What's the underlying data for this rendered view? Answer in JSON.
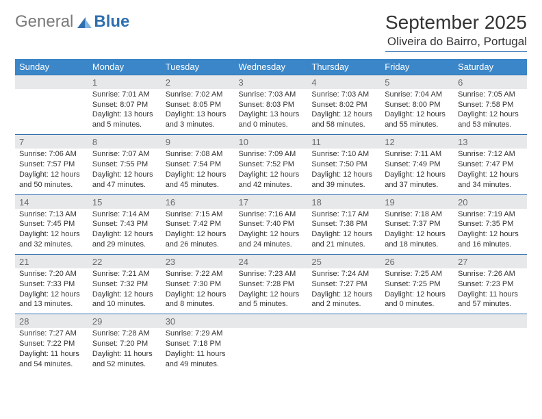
{
  "brand": {
    "general": "General",
    "blue": "Blue"
  },
  "title": "September 2025",
  "location": "Oliveira do Bairro, Portugal",
  "colors": {
    "header_bg": "#3b86c8",
    "header_text": "#ffffff",
    "daynum_bg": "#e7e8ea",
    "rule": "#2f6faf",
    "body_text": "#333333",
    "muted_text": "#6b6b6b",
    "logo_grey": "#7a7a7a",
    "logo_blue": "#2f6faf"
  },
  "weekdays": [
    "Sunday",
    "Monday",
    "Tuesday",
    "Wednesday",
    "Thursday",
    "Friday",
    "Saturday"
  ],
  "weeks": [
    [
      null,
      {
        "n": "1",
        "sr": "Sunrise: 7:01 AM",
        "ss": "Sunset: 8:07 PM",
        "d1": "Daylight: 13 hours",
        "d2": "and 5 minutes."
      },
      {
        "n": "2",
        "sr": "Sunrise: 7:02 AM",
        "ss": "Sunset: 8:05 PM",
        "d1": "Daylight: 13 hours",
        "d2": "and 3 minutes."
      },
      {
        "n": "3",
        "sr": "Sunrise: 7:03 AM",
        "ss": "Sunset: 8:03 PM",
        "d1": "Daylight: 13 hours",
        "d2": "and 0 minutes."
      },
      {
        "n": "4",
        "sr": "Sunrise: 7:03 AM",
        "ss": "Sunset: 8:02 PM",
        "d1": "Daylight: 12 hours",
        "d2": "and 58 minutes."
      },
      {
        "n": "5",
        "sr": "Sunrise: 7:04 AM",
        "ss": "Sunset: 8:00 PM",
        "d1": "Daylight: 12 hours",
        "d2": "and 55 minutes."
      },
      {
        "n": "6",
        "sr": "Sunrise: 7:05 AM",
        "ss": "Sunset: 7:58 PM",
        "d1": "Daylight: 12 hours",
        "d2": "and 53 minutes."
      }
    ],
    [
      {
        "n": "7",
        "sr": "Sunrise: 7:06 AM",
        "ss": "Sunset: 7:57 PM",
        "d1": "Daylight: 12 hours",
        "d2": "and 50 minutes."
      },
      {
        "n": "8",
        "sr": "Sunrise: 7:07 AM",
        "ss": "Sunset: 7:55 PM",
        "d1": "Daylight: 12 hours",
        "d2": "and 47 minutes."
      },
      {
        "n": "9",
        "sr": "Sunrise: 7:08 AM",
        "ss": "Sunset: 7:54 PM",
        "d1": "Daylight: 12 hours",
        "d2": "and 45 minutes."
      },
      {
        "n": "10",
        "sr": "Sunrise: 7:09 AM",
        "ss": "Sunset: 7:52 PM",
        "d1": "Daylight: 12 hours",
        "d2": "and 42 minutes."
      },
      {
        "n": "11",
        "sr": "Sunrise: 7:10 AM",
        "ss": "Sunset: 7:50 PM",
        "d1": "Daylight: 12 hours",
        "d2": "and 39 minutes."
      },
      {
        "n": "12",
        "sr": "Sunrise: 7:11 AM",
        "ss": "Sunset: 7:49 PM",
        "d1": "Daylight: 12 hours",
        "d2": "and 37 minutes."
      },
      {
        "n": "13",
        "sr": "Sunrise: 7:12 AM",
        "ss": "Sunset: 7:47 PM",
        "d1": "Daylight: 12 hours",
        "d2": "and 34 minutes."
      }
    ],
    [
      {
        "n": "14",
        "sr": "Sunrise: 7:13 AM",
        "ss": "Sunset: 7:45 PM",
        "d1": "Daylight: 12 hours",
        "d2": "and 32 minutes."
      },
      {
        "n": "15",
        "sr": "Sunrise: 7:14 AM",
        "ss": "Sunset: 7:43 PM",
        "d1": "Daylight: 12 hours",
        "d2": "and 29 minutes."
      },
      {
        "n": "16",
        "sr": "Sunrise: 7:15 AM",
        "ss": "Sunset: 7:42 PM",
        "d1": "Daylight: 12 hours",
        "d2": "and 26 minutes."
      },
      {
        "n": "17",
        "sr": "Sunrise: 7:16 AM",
        "ss": "Sunset: 7:40 PM",
        "d1": "Daylight: 12 hours",
        "d2": "and 24 minutes."
      },
      {
        "n": "18",
        "sr": "Sunrise: 7:17 AM",
        "ss": "Sunset: 7:38 PM",
        "d1": "Daylight: 12 hours",
        "d2": "and 21 minutes."
      },
      {
        "n": "19",
        "sr": "Sunrise: 7:18 AM",
        "ss": "Sunset: 7:37 PM",
        "d1": "Daylight: 12 hours",
        "d2": "and 18 minutes."
      },
      {
        "n": "20",
        "sr": "Sunrise: 7:19 AM",
        "ss": "Sunset: 7:35 PM",
        "d1": "Daylight: 12 hours",
        "d2": "and 16 minutes."
      }
    ],
    [
      {
        "n": "21",
        "sr": "Sunrise: 7:20 AM",
        "ss": "Sunset: 7:33 PM",
        "d1": "Daylight: 12 hours",
        "d2": "and 13 minutes."
      },
      {
        "n": "22",
        "sr": "Sunrise: 7:21 AM",
        "ss": "Sunset: 7:32 PM",
        "d1": "Daylight: 12 hours",
        "d2": "and 10 minutes."
      },
      {
        "n": "23",
        "sr": "Sunrise: 7:22 AM",
        "ss": "Sunset: 7:30 PM",
        "d1": "Daylight: 12 hours",
        "d2": "and 8 minutes."
      },
      {
        "n": "24",
        "sr": "Sunrise: 7:23 AM",
        "ss": "Sunset: 7:28 PM",
        "d1": "Daylight: 12 hours",
        "d2": "and 5 minutes."
      },
      {
        "n": "25",
        "sr": "Sunrise: 7:24 AM",
        "ss": "Sunset: 7:27 PM",
        "d1": "Daylight: 12 hours",
        "d2": "and 2 minutes."
      },
      {
        "n": "26",
        "sr": "Sunrise: 7:25 AM",
        "ss": "Sunset: 7:25 PM",
        "d1": "Daylight: 12 hours",
        "d2": "and 0 minutes."
      },
      {
        "n": "27",
        "sr": "Sunrise: 7:26 AM",
        "ss": "Sunset: 7:23 PM",
        "d1": "Daylight: 11 hours",
        "d2": "and 57 minutes."
      }
    ],
    [
      {
        "n": "28",
        "sr": "Sunrise: 7:27 AM",
        "ss": "Sunset: 7:22 PM",
        "d1": "Daylight: 11 hours",
        "d2": "and 54 minutes."
      },
      {
        "n": "29",
        "sr": "Sunrise: 7:28 AM",
        "ss": "Sunset: 7:20 PM",
        "d1": "Daylight: 11 hours",
        "d2": "and 52 minutes."
      },
      {
        "n": "30",
        "sr": "Sunrise: 7:29 AM",
        "ss": "Sunset: 7:18 PM",
        "d1": "Daylight: 11 hours",
        "d2": "and 49 minutes."
      },
      null,
      null,
      null,
      null
    ]
  ]
}
